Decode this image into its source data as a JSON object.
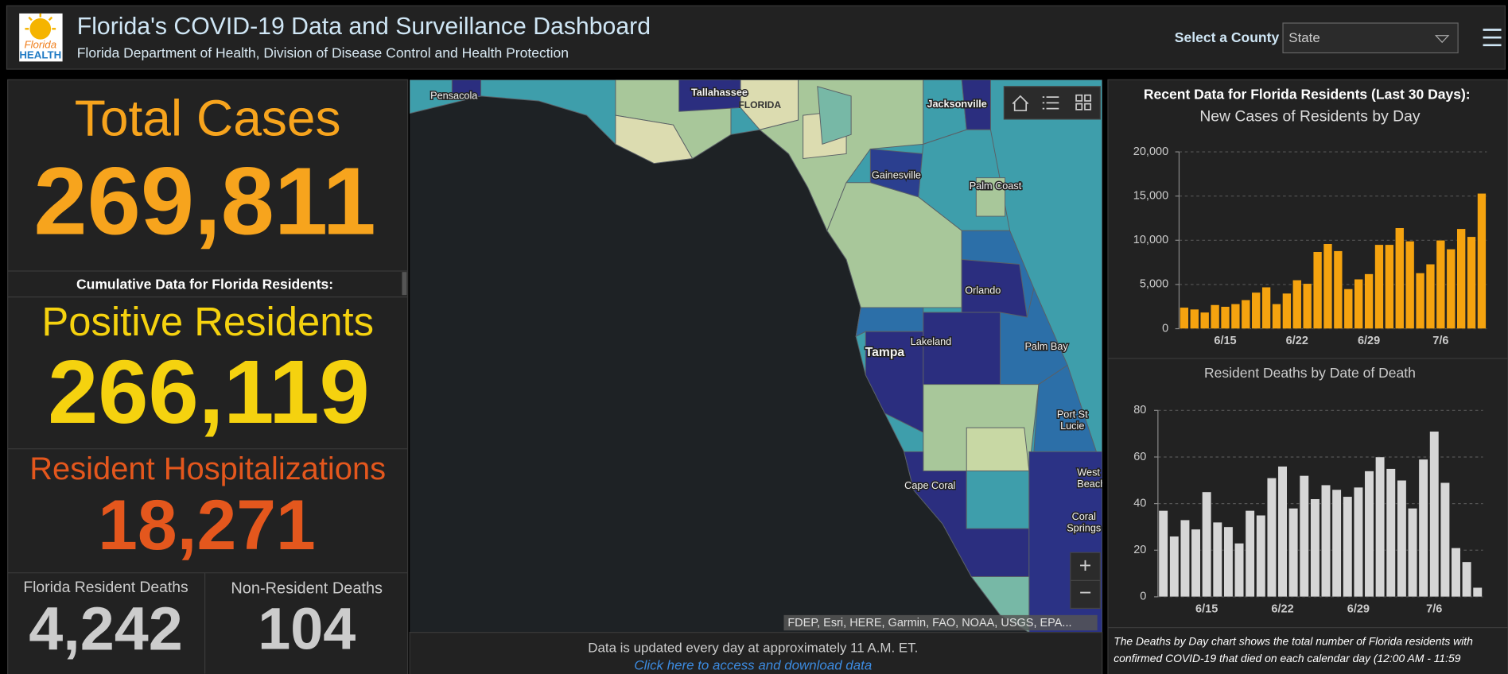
{
  "header": {
    "logo": [
      "Florida",
      "HEALTH"
    ],
    "title": "Florida's COVID-19 Data and Surveillance Dashboard",
    "subtitle": "Florida Department of Health, Division of Disease Control and Health Protection",
    "county_label": "Select a County",
    "county_value": "State"
  },
  "summary": {
    "total_cases": {
      "label": "Total Cases",
      "value": "269,811"
    },
    "cumulative_heading": "Cumulative Data for Florida Residents:",
    "positive_residents": {
      "label": "Positive Residents",
      "value": "266,119"
    },
    "hospitalizations": {
      "label": "Resident Hospitalizations",
      "value": "18,271"
    },
    "resident_deaths": {
      "label": "Florida Resident Deaths",
      "value": "4,242"
    },
    "non_resident_deaths": {
      "label": "Non-Resident Deaths",
      "value": "104"
    }
  },
  "map": {
    "places": [
      [
        "Pensacola"
      ],
      [
        "Tallahassee"
      ],
      [
        "FLORIDA"
      ],
      [
        "Jacksonville"
      ],
      [
        "Gainesville"
      ],
      [
        "Palm Coast"
      ],
      [
        "Orlando"
      ],
      [
        "Lakeland"
      ],
      [
        "Tampa"
      ],
      [
        "Palm Bay"
      ],
      [
        "Port St",
        "Lucie"
      ],
      [
        "West Palm",
        "Beach"
      ],
      [
        "Cape Coral"
      ],
      [
        "Coral",
        "Springs"
      ]
    ],
    "attribution": "FDEP, Esri, HERE, Garmin, FAO, NOAA, USGS, EPA...",
    "zoom_in": "+",
    "zoom_out": "−"
  },
  "footer": {
    "update_note": "Data is updated every day at approximately 11 A.M. ET.",
    "link": "Click here to access and download data"
  },
  "recent": {
    "heading": "Recent Data for Florida Residents (Last 30 Days):",
    "charts": [
      {
        "type": "bar",
        "title": "New Cases of Residents by Day",
        "categories": [
          null,
          null,
          null,
          null,
          "6/15",
          null,
          null,
          null,
          null,
          null,
          null,
          "6/22",
          null,
          null,
          null,
          null,
          null,
          null,
          "6/29",
          null,
          null,
          null,
          null,
          null,
          null,
          "7/6",
          null,
          null,
          null,
          null
        ],
        "values": [
          2400,
          2200,
          1850,
          2700,
          2500,
          2800,
          3250,
          4100,
          4700,
          2800,
          4000,
          5500,
          5100,
          8700,
          9600,
          8800,
          4500,
          5600,
          6200,
          9500,
          9500,
          11400,
          9900,
          6300,
          7300,
          10000,
          9000,
          11300,
          10400,
          15300
        ],
        "color": "#f5a30f",
        "ylim": [
          0,
          20000
        ],
        "yticks": [
          0,
          {
            "value": 5000,
            "label": "5,000"
          },
          {
            "value": 10000,
            "label": "10,000"
          },
          {
            "value": 15000,
            "label": "15,000"
          },
          {
            "value": 20000,
            "label": "20,000"
          }
        ],
        "grid": true
      },
      {
        "type": "bar",
        "title": "Resident Deaths by Date of Death",
        "categories": [
          null,
          null,
          null,
          null,
          "6/15",
          null,
          null,
          null,
          null,
          null,
          null,
          "6/22",
          null,
          null,
          null,
          null,
          null,
          null,
          "6/29",
          null,
          null,
          null,
          null,
          null,
          null,
          "7/6",
          null,
          null,
          null,
          null
        ],
        "values": [
          37,
          26,
          33,
          29,
          45,
          32,
          30,
          23,
          37,
          35,
          51,
          56,
          38,
          52,
          42,
          48,
          46,
          43,
          47,
          54,
          60,
          55,
          50,
          38,
          59,
          71,
          49,
          21,
          15,
          4
        ],
        "color": "#d6d6d6",
        "ylim": [
          0,
          80
        ],
        "yticks": [
          0,
          20,
          40,
          60,
          80
        ],
        "grid": true
      }
    ],
    "note": [
      "The Deaths by Day chart shows the total number of Florida residents with",
      "confirmed COVID-19 that died on each calendar day (12:00 AM - 11:59"
    ]
  }
}
